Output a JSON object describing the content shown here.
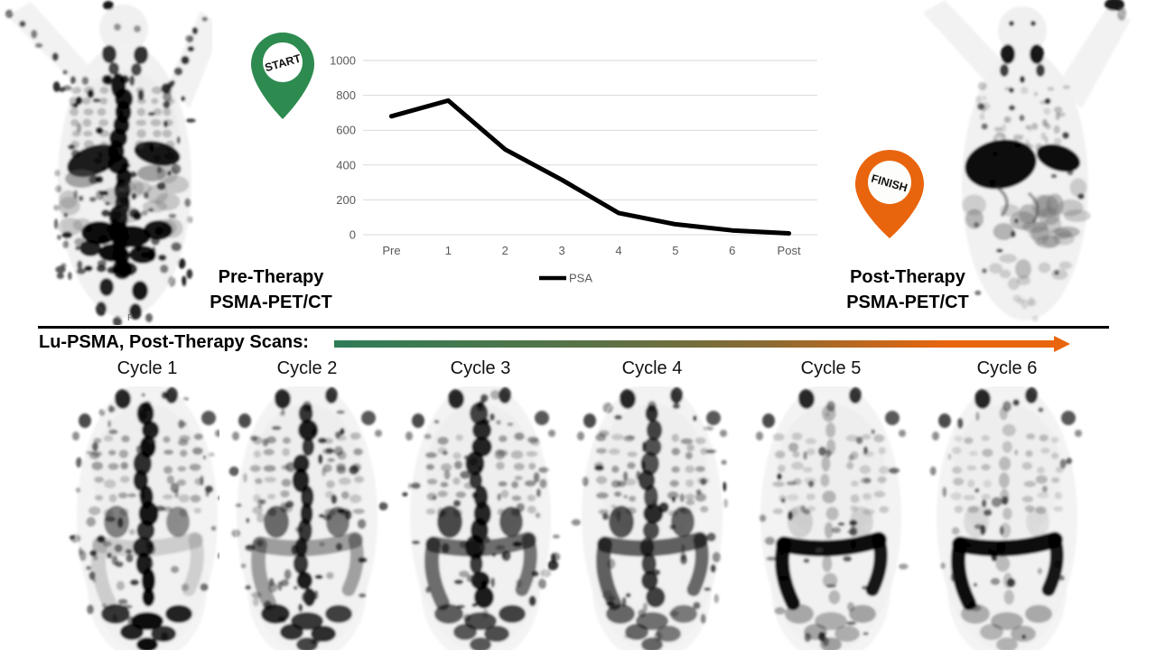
{
  "figure": {
    "pre_caption": {
      "line1": "Pre-Therapy",
      "line2": "PSMA-PET/CT"
    },
    "post_caption": {
      "line1": "Post-Therapy",
      "line2": "PSMA-PET/CT"
    },
    "start_pin": {
      "label": "START",
      "color": "#2e8b50"
    },
    "finish_pin": {
      "label": "FINISH",
      "color": "#e8650e"
    },
    "film_marker": "F",
    "timeline": {
      "title": "Lu-PSMA, Post-Therapy Scans:",
      "gradient_start": "#2e7d57",
      "gradient_mid": "#8a6b33",
      "gradient_end": "#e8650e",
      "cycles": [
        "Cycle 1",
        "Cycle 2",
        "Cycle 3",
        "Cycle 4",
        "Cycle 5",
        "Cycle 6"
      ]
    }
  },
  "chart_data": {
    "type": "line",
    "title": "",
    "xlabel": "",
    "ylabel": "",
    "categories": [
      "Pre",
      "1",
      "2",
      "3",
      "4",
      "5",
      "6",
      "Post"
    ],
    "series": [
      {
        "name": "PSA",
        "color": "#000000",
        "values": [
          680,
          770,
          490,
          315,
          125,
          60,
          25,
          8
        ]
      }
    ],
    "ylim": [
      0,
      1000
    ],
    "y_ticks": [
      0,
      200,
      400,
      600,
      800,
      1000
    ],
    "grid": true,
    "legend_position": "bottom",
    "axis_color": "#595959",
    "grid_color": "#d9d9d9"
  }
}
